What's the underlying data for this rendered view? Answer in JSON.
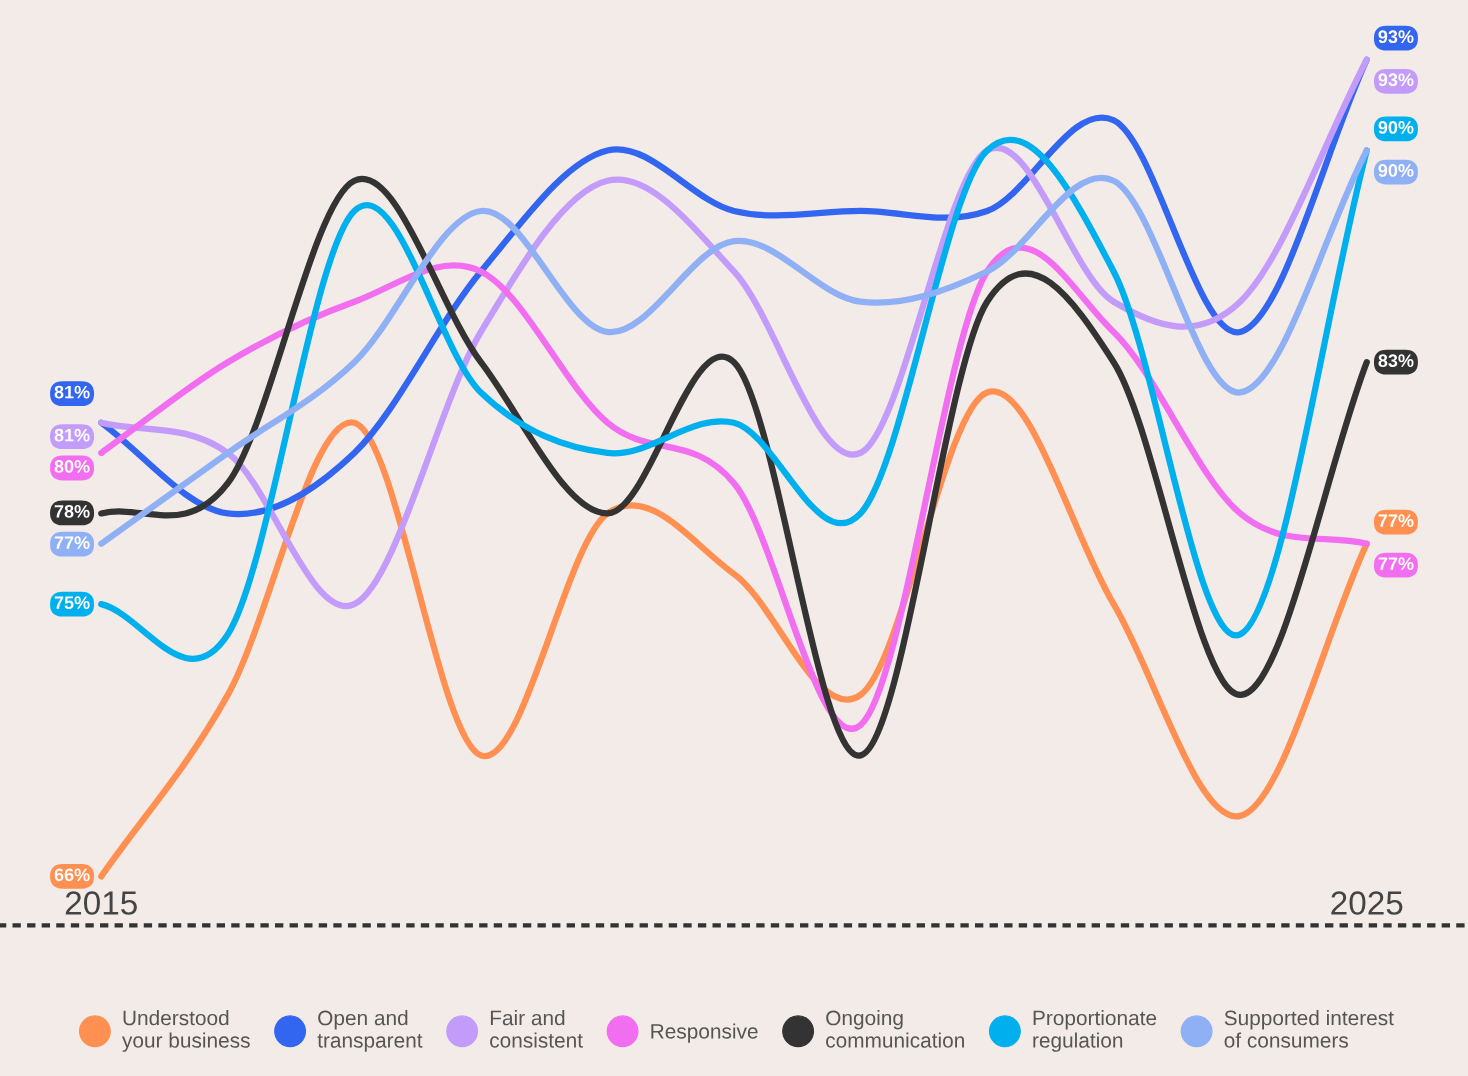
{
  "chart_data": {
    "type": "line",
    "x": [
      2015,
      2016,
      2017,
      2018,
      2019,
      2020,
      2021,
      2022,
      2023,
      2024,
      2025
    ],
    "xlim": [
      2014.2,
      2025.8
    ],
    "xticks": [
      2015,
      2025
    ],
    "tick_labels": "x",
    "grid": false,
    "legend": "bottom",
    "series": [
      {
        "name": "Understood your business",
        "color": "#ff9052",
        "values": [
          66,
          72,
          81,
          70,
          78,
          76,
          72,
          82,
          75,
          68,
          77
        ],
        "value_labels": [
          "66%",
          null,
          null,
          null,
          null,
          null,
          null,
          null,
          null,
          null,
          "77%"
        ]
      },
      {
        "name": "Open and transparent",
        "color": "#3366f0",
        "values": [
          81,
          78,
          80,
          86,
          90,
          88,
          88,
          88,
          91,
          84,
          93
        ],
        "value_labels": [
          "81%",
          null,
          null,
          null,
          null,
          null,
          null,
          null,
          null,
          null,
          "93%"
        ]
      },
      {
        "name": "Fair and consistent",
        "color": "#c39bfa",
        "values": [
          81,
          80,
          75,
          84,
          89,
          86,
          80,
          90,
          85,
          85,
          93
        ],
        "value_labels": [
          "81%",
          null,
          null,
          null,
          null,
          null,
          null,
          null,
          null,
          null,
          "93%"
        ]
      },
      {
        "name": "Responsive",
        "color": "#f26ef0",
        "values": [
          80,
          83,
          85,
          86,
          81,
          79,
          71,
          86,
          84,
          78,
          77
        ],
        "value_labels": [
          "80%",
          null,
          null,
          null,
          null,
          null,
          null,
          null,
          null,
          null,
          "77%"
        ]
      },
      {
        "name": "Ongoing communication",
        "color": "#333333",
        "values": [
          78,
          79,
          89,
          83,
          78,
          83,
          70,
          85,
          83,
          72,
          83
        ],
        "value_labels": [
          "78%",
          null,
          null,
          null,
          null,
          null,
          null,
          null,
          null,
          null,
          "83%"
        ]
      },
      {
        "name": "Proportionate regulation",
        "color": "#00b0ee",
        "values": [
          75,
          74,
          88,
          82,
          80,
          81,
          78,
          90,
          86,
          74,
          90
        ],
        "value_labels": [
          "75%",
          null,
          null,
          null,
          null,
          null,
          null,
          null,
          null,
          null,
          "90%"
        ]
      },
      {
        "name": "Supported interest of consumers",
        "color": "#8fb0f5",
        "values": [
          77,
          80,
          83,
          88,
          84,
          87,
          85,
          86,
          89,
          82,
          90
        ],
        "value_labels": [
          "77%",
          null,
          null,
          null,
          null,
          null,
          null,
          null,
          null,
          null,
          "90%"
        ]
      }
    ]
  }
}
